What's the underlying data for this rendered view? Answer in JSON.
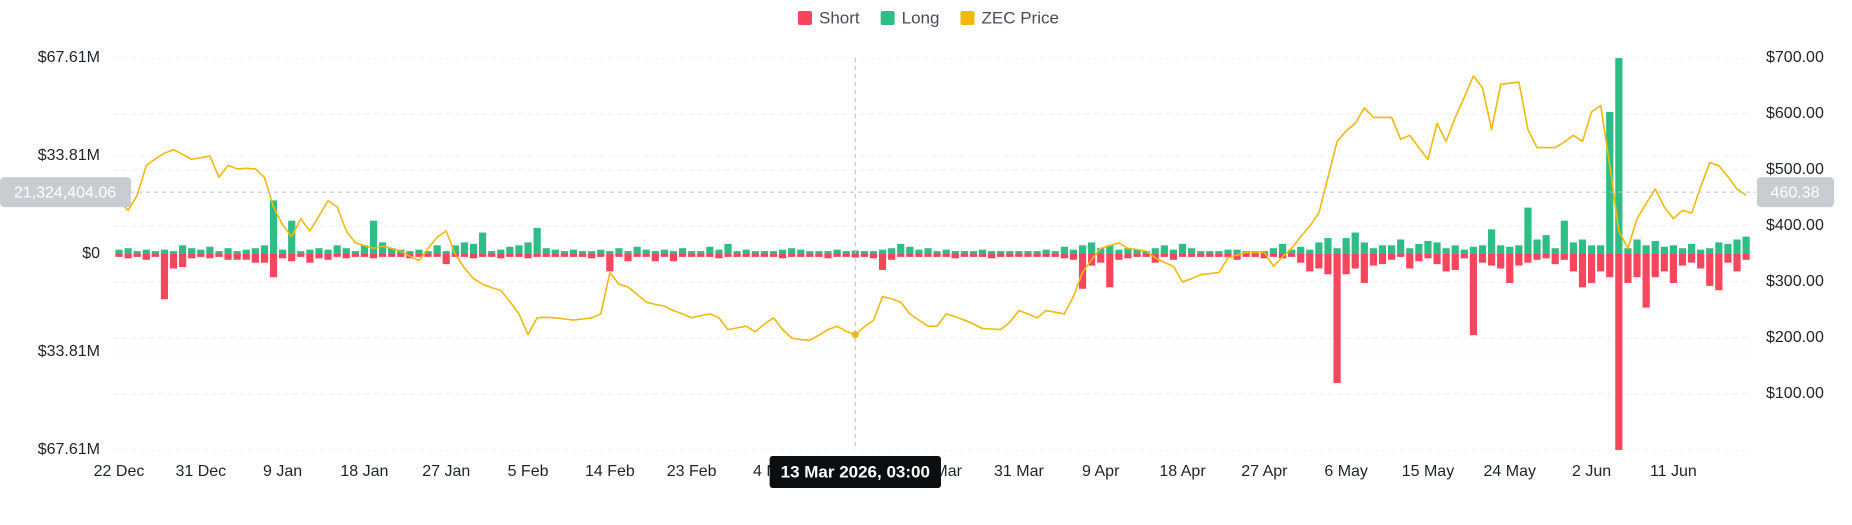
{
  "chart_data": {
    "type": "bar",
    "categories": [
      "22 Dec",
      null,
      null,
      null,
      null,
      null,
      null,
      null,
      null,
      "31 Dec",
      null,
      null,
      null,
      null,
      null,
      null,
      null,
      null,
      "9 Jan",
      null,
      null,
      null,
      null,
      null,
      null,
      null,
      null,
      "18 Jan",
      null,
      null,
      null,
      null,
      null,
      null,
      null,
      null,
      "27 Jan",
      null,
      null,
      null,
      null,
      null,
      null,
      null,
      null,
      "5 Feb",
      null,
      null,
      null,
      null,
      null,
      null,
      null,
      null,
      "14 Feb",
      null,
      null,
      null,
      null,
      null,
      null,
      null,
      null,
      "23 Feb",
      null,
      null,
      null,
      null,
      null,
      null,
      null,
      null,
      "4 Mar",
      null,
      null,
      null,
      null,
      null,
      null,
      null,
      null,
      "13 Mar",
      null,
      null,
      null,
      null,
      null,
      null,
      null,
      null,
      "22 Mar",
      null,
      null,
      null,
      null,
      null,
      null,
      null,
      null,
      "31 Mar",
      null,
      null,
      null,
      null,
      null,
      null,
      null,
      null,
      "9 Apr",
      null,
      null,
      null,
      null,
      null,
      null,
      null,
      null,
      "18 Apr",
      null,
      null,
      null,
      null,
      null,
      null,
      null,
      null,
      "27 Apr",
      null,
      null,
      null,
      null,
      null,
      null,
      null,
      null,
      "6 May",
      null,
      null,
      null,
      null,
      null,
      null,
      null,
      null,
      "15 May",
      null,
      null,
      null,
      null,
      null,
      null,
      null,
      null,
      "24 May",
      null,
      null,
      null,
      null,
      null,
      null,
      null,
      null,
      "2 Jun",
      null,
      null,
      null,
      null,
      null,
      null,
      null,
      null,
      "11 Jun",
      null,
      null,
      null,
      null,
      null,
      null,
      null,
      null
    ],
    "series": [
      {
        "name": "Short",
        "color": "#f6465d",
        "values": [
          -1,
          -1.5,
          -1,
          -2,
          -1,
          -15.6,
          -5,
          -4.5,
          -1.5,
          -1,
          -1.5,
          -1,
          -2,
          -2,
          -2,
          -3,
          -3,
          -8,
          -1.5,
          -2.5,
          -1,
          -3,
          -1.5,
          -2,
          -1,
          -1.5,
          -1,
          -1,
          -1.5,
          -1,
          -1,
          -1,
          -1.5,
          -1,
          -1,
          -1,
          -3.5,
          -1,
          -1,
          -1.5,
          -1,
          -1,
          -1.5,
          -1,
          -1,
          -1.5,
          -1,
          -1,
          -1,
          -1,
          -1,
          -1,
          -1.5,
          -1,
          -6,
          -1,
          -2.5,
          -1,
          -1,
          -2.5,
          -1,
          -2.5,
          -1,
          -1,
          -1,
          -1,
          -1.5,
          -1,
          -1,
          -1,
          -1,
          -1,
          -1,
          -1.5,
          -1,
          -1,
          -1,
          -1,
          -1.5,
          -1,
          -1,
          -1.2,
          -1,
          -1.5,
          -5.5,
          -2,
          -1,
          -1,
          -1,
          -1,
          -1,
          -1,
          -1.5,
          -1,
          -1,
          -1,
          -1.5,
          -1,
          -1,
          -1,
          -1,
          -1,
          -1,
          -1,
          -1.5,
          -2,
          -12,
          -4,
          -3,
          -11.5,
          -2,
          -1.5,
          -1,
          -1,
          -3,
          -1,
          -2,
          -1,
          -1,
          -1,
          -1,
          -1,
          -1,
          -2,
          -1,
          -1,
          -1.5,
          -1,
          -1.5,
          -1,
          -3,
          -6,
          -5,
          -7,
          -44.5,
          -7,
          -5,
          -10,
          -4,
          -3.5,
          -2,
          -1,
          -5,
          -2.5,
          -1.5,
          -3.5,
          -6,
          -5.5,
          -1.5,
          -28,
          -3,
          -4,
          -5,
          -10,
          -4,
          -3,
          -2,
          -1.5,
          -3.5,
          -2,
          -6,
          -11.5,
          -10,
          -6,
          -8,
          -67.6,
          -10,
          -8,
          -18.5,
          -8,
          -6,
          -10,
          -4,
          -3,
          -5,
          -11,
          -12.5,
          -3,
          -6,
          -2
        ]
      },
      {
        "name": "Long",
        "color": "#2ebd85",
        "values": [
          1.5,
          2,
          1,
          1.5,
          1,
          1.5,
          1,
          3,
          2,
          1.5,
          2.5,
          1,
          2,
          1,
          1.5,
          2,
          3,
          18.5,
          1.5,
          11.5,
          1,
          1.5,
          2,
          1.5,
          3,
          2,
          1,
          3,
          11.5,
          4,
          2,
          1.5,
          1,
          1.5,
          1,
          3,
          1,
          3,
          4,
          3.5,
          7.4,
          1,
          1.5,
          2.5,
          3,
          4,
          9,
          2,
          1.5,
          1,
          1.5,
          1,
          1,
          1.5,
          1,
          2,
          1,
          2.5,
          1.5,
          1,
          1.5,
          1,
          2,
          1,
          1,
          2.5,
          1.5,
          3.5,
          1,
          1.5,
          1,
          1,
          1,
          1.5,
          2,
          1.5,
          1,
          1,
          1,
          1.5,
          1,
          1.2,
          1,
          1,
          1.5,
          2,
          3.5,
          2.5,
          1.5,
          2,
          1,
          1.5,
          1,
          1,
          1,
          1.5,
          1,
          1,
          1,
          1,
          1,
          1,
          1.5,
          1,
          2.5,
          1.5,
          3,
          4,
          2,
          3,
          1.5,
          2,
          1.5,
          1,
          2,
          3,
          1.5,
          3.5,
          2,
          1,
          1,
          1,
          1.5,
          1.5,
          1,
          1,
          1,
          2,
          3.5,
          1.5,
          2.5,
          1.5,
          4,
          5.5,
          2,
          5.5,
          7.4,
          4,
          2,
          3,
          3,
          5,
          2,
          3.5,
          4.5,
          4,
          2,
          3,
          1.5,
          2.5,
          3,
          8.5,
          3,
          2.5,
          3,
          16,
          5,
          6.5,
          2,
          11.5,
          4,
          5,
          3,
          3,
          49,
          67.6,
          2,
          5,
          3,
          4.5,
          2.5,
          3,
          2,
          3.5,
          1.5,
          2,
          4,
          3.5,
          5,
          6
        ]
      },
      {
        "name": "ZEC Price",
        "color": "#f0b90b",
        "type": "line",
        "axis": "y2",
        "values": [
          445,
          428,
          455,
          508,
          520,
          530,
          536,
          528,
          519,
          522,
          525,
          487,
          508,
          502,
          503,
          502,
          487,
          434,
          402,
          381,
          413,
          391,
          418,
          445,
          434,
          391,
          370,
          365,
          360,
          364,
          360,
          355,
          346,
          338,
          360,
          380,
          391,
          349,
          325,
          306,
          296,
          290,
          285,
          265,
          243,
          206,
          236,
          237,
          236,
          234,
          232,
          234,
          236,
          243,
          317,
          296,
          291,
          278,
          264,
          260,
          257,
          249,
          243,
          236,
          240,
          243,
          236,
          215,
          218,
          221,
          211,
          225,
          236,
          215,
          200,
          197,
          196,
          205,
          215,
          221,
          212,
          206,
          220,
          232,
          274,
          270,
          264,
          243,
          232,
          221,
          221,
          243,
          238,
          232,
          225,
          217,
          216,
          215,
          228,
          249,
          243,
          236,
          249,
          246,
          243,
          274,
          317,
          340,
          360,
          365,
          370,
          360,
          358,
          355,
          343,
          335,
          328,
          300,
          306,
          313,
          315,
          317,
          343,
          348,
          353,
          353,
          353,
          328,
          345,
          360,
          381,
          400,
          423,
          487,
          551,
          570,
          583,
          611,
          594,
          594,
          594,
          555,
          562,
          540,
          519,
          583,
          551,
          594,
          630,
          668,
          647,
          572,
          653,
          655,
          657,
          572,
          540,
          540,
          540,
          550,
          562,
          551,
          604,
          615,
          508,
          391,
          360,
          413,
          440,
          466,
          434,
          413,
          428,
          423,
          470,
          513,
          508,
          488,
          466,
          455
        ]
      }
    ],
    "ylim": [
      -67.61,
      67.61
    ],
    "yticks": [
      {
        "value": 67.61,
        "label": "$67.61M"
      },
      {
        "value": 33.81,
        "label": "$33.81M"
      },
      {
        "value": 0,
        "label": "$0"
      },
      {
        "value": -33.81,
        "label": "$33.81M"
      },
      {
        "value": -67.61,
        "label": "$67.61M"
      }
    ],
    "y2lim": [
      0,
      700
    ],
    "y2ticks": [
      {
        "value": 100,
        "label": "$100.00"
      },
      {
        "value": 200,
        "label": "$200.00"
      },
      {
        "value": 300,
        "label": "$300.00"
      },
      {
        "value": 400,
        "label": "$400.00"
      },
      {
        "value": 500,
        "label": "$500.00"
      },
      {
        "value": 600,
        "label": "$600.00"
      },
      {
        "value": 700,
        "label": "$700.00"
      }
    ],
    "grid": true,
    "legend": "top",
    "crosshair": {
      "x_label": "13 Mar 2026, 03:00",
      "y_value": {
        "value": 21.32440406,
        "label": "21,324,404.06"
      },
      "y2_value": 460.38
    }
  }
}
